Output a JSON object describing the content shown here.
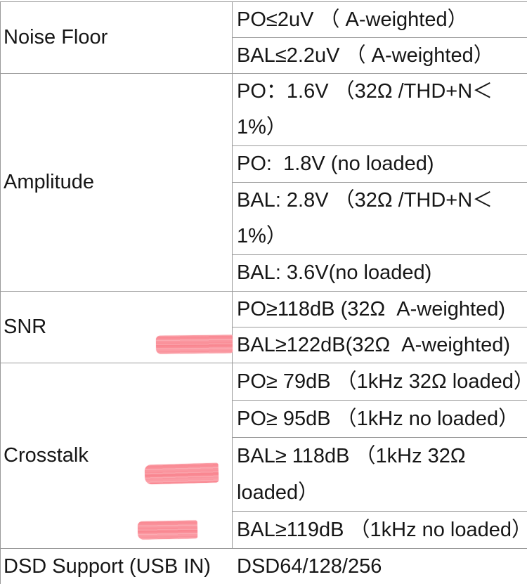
{
  "highlight_color": "#f9858f",
  "border_color": "#9a9a9a",
  "text_color": "#161616",
  "table": {
    "sections": [
      {
        "label": "Noise Floor",
        "rows": [
          {
            "lines": [
              "PO≤2uV （ A-weighted）"
            ]
          },
          {
            "lines": [
              "BAL≤2.2uV （ A-weighted）"
            ]
          }
        ]
      },
      {
        "label": "Amplitude",
        "rows": [
          {
            "lines": [
              "PO：1.6V （32Ω /THD+N＜",
              "1%）"
            ]
          },
          {
            "lines": [
              "PO:  1.8V (no loaded)"
            ]
          },
          {
            "lines": [
              "BAL: 2.8V （32Ω /THD+N＜",
              "1%）"
            ]
          },
          {
            "lines": [
              "BAL: 3.6V(no loaded)"
            ]
          }
        ]
      },
      {
        "label": "SNR",
        "rows": [
          {
            "lines": [
              "PO≥118dB (32Ω  A-weighted)"
            ]
          },
          {
            "lines": [
              "BAL≥122dB(32Ω  A-weighted)"
            ]
          }
        ]
      },
      {
        "label": "Crosstalk",
        "rows": [
          {
            "lines": [
              "PO≥ 79dB （1kHz 32Ω loaded）"
            ]
          },
          {
            "lines": [
              "PO≥ 95dB （1kHz no loaded）"
            ]
          },
          {
            "lines": [
              "BAL≥ 118dB （1kHz 32Ω",
              "loaded）"
            ]
          },
          {
            "lines": [
              "BAL≥119dB （1kHz no loaded）"
            ]
          }
        ]
      },
      {
        "label": "DSD Support (USB IN)",
        "rows": [
          {
            "lines": [
              "DSD64/128/256"
            ]
          }
        ]
      }
    ]
  },
  "highlights": [
    {
      "name": "highlight-snr-bal",
      "marks_row": "BAL≥122dB(32Ω  A-weighted)"
    },
    {
      "name": "highlight-crosstalk-bal-118",
      "marks_row": "BAL≥ 118dB （1kHz 32Ω loaded）"
    },
    {
      "name": "highlight-crosstalk-bal-119",
      "marks_row": "BAL≥119dB （1kHz no loaded）"
    }
  ]
}
